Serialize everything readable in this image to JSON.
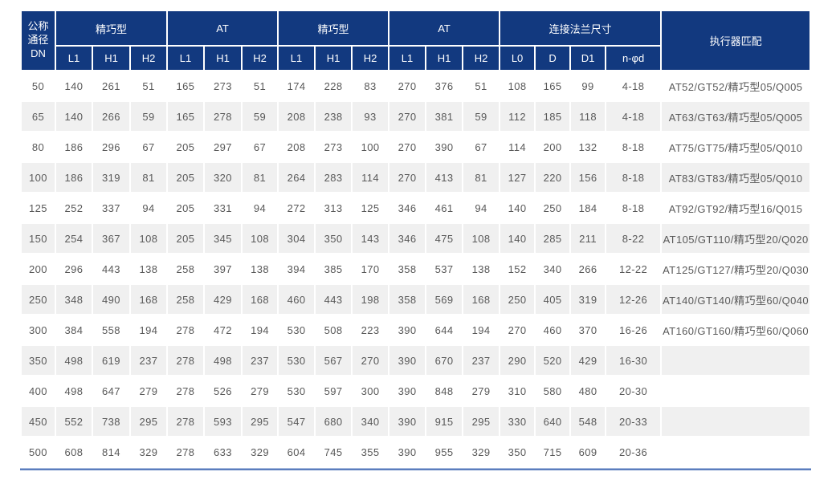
{
  "colors": {
    "header_bg": "#12397f",
    "alt_row_bg": "#f0f0f0",
    "data_text": "#595959",
    "header_text": "#ffffff",
    "bottom_rule": "#5b7dbe"
  },
  "table": {
    "header": {
      "dn_label": "公称\n通径\nDN",
      "groups": [
        {
          "label": "精巧型"
        },
        {
          "label": "AT"
        },
        {
          "label": "精巧型"
        },
        {
          "label": "AT"
        },
        {
          "label": "连接法兰尺寸"
        }
      ],
      "sub": [
        "L1",
        "H1",
        "H2",
        "L1",
        "H1",
        "H2",
        "L1",
        "H1",
        "H2",
        "L1",
        "H1",
        "H2",
        "L0",
        "D",
        "D1",
        "n-φd"
      ],
      "actuator_label": "执行器匹配"
    },
    "rows": [
      {
        "dn": "50",
        "values": [
          "140",
          "261",
          "51",
          "165",
          "273",
          "51",
          "174",
          "228",
          "83",
          "270",
          "376",
          "51",
          "108",
          "165",
          "99",
          "4-18"
        ],
        "actuator": "AT52/GT52/精巧型05/Q005"
      },
      {
        "dn": "65",
        "values": [
          "140",
          "266",
          "59",
          "165",
          "278",
          "59",
          "208",
          "238",
          "93",
          "270",
          "381",
          "59",
          "112",
          "185",
          "118",
          "4-18"
        ],
        "actuator": "AT63/GT63/精巧型05/Q005"
      },
      {
        "dn": "80",
        "values": [
          "186",
          "296",
          "67",
          "205",
          "297",
          "67",
          "208",
          "273",
          "100",
          "270",
          "390",
          "67",
          "114",
          "200",
          "132",
          "8-18"
        ],
        "actuator": "AT75/GT75/精巧型05/Q010"
      },
      {
        "dn": "100",
        "values": [
          "186",
          "319",
          "81",
          "205",
          "320",
          "81",
          "264",
          "283",
          "114",
          "270",
          "413",
          "81",
          "127",
          "220",
          "156",
          "8-18"
        ],
        "actuator": "AT83/GT83/精巧型05/Q010"
      },
      {
        "dn": "125",
        "values": [
          "252",
          "337",
          "94",
          "205",
          "331",
          "94",
          "272",
          "313",
          "125",
          "346",
          "461",
          "94",
          "140",
          "250",
          "184",
          "8-18"
        ],
        "actuator": "AT92/GT92/精巧型16/Q015"
      },
      {
        "dn": "150",
        "values": [
          "254",
          "367",
          "108",
          "205",
          "345",
          "108",
          "304",
          "350",
          "143",
          "346",
          "475",
          "108",
          "140",
          "285",
          "211",
          "8-22"
        ],
        "actuator": "AT105/GT110/精巧型20/Q020"
      },
      {
        "dn": "200",
        "values": [
          "296",
          "443",
          "138",
          "258",
          "397",
          "138",
          "394",
          "385",
          "170",
          "358",
          "537",
          "138",
          "152",
          "340",
          "266",
          "12-22"
        ],
        "actuator": "AT125/GT127/精巧型20/Q030"
      },
      {
        "dn": "250",
        "values": [
          "348",
          "490",
          "168",
          "258",
          "429",
          "168",
          "460",
          "443",
          "198",
          "358",
          "569",
          "168",
          "250",
          "405",
          "319",
          "12-26"
        ],
        "actuator": "AT140/GT140/精巧型60/Q040"
      },
      {
        "dn": "300",
        "values": [
          "384",
          "558",
          "194",
          "278",
          "472",
          "194",
          "530",
          "508",
          "223",
          "390",
          "644",
          "194",
          "270",
          "460",
          "370",
          "16-26"
        ],
        "actuator": "AT160/GT160/精巧型60/Q060"
      },
      {
        "dn": "350",
        "values": [
          "498",
          "619",
          "237",
          "278",
          "498",
          "237",
          "530",
          "567",
          "270",
          "390",
          "670",
          "237",
          "290",
          "520",
          "429",
          "16-30"
        ],
        "actuator": ""
      },
      {
        "dn": "400",
        "values": [
          "498",
          "647",
          "279",
          "278",
          "526",
          "279",
          "530",
          "597",
          "300",
          "390",
          "848",
          "279",
          "310",
          "580",
          "480",
          "20-30"
        ],
        "actuator": ""
      },
      {
        "dn": "450",
        "values": [
          "552",
          "738",
          "295",
          "278",
          "593",
          "295",
          "547",
          "680",
          "340",
          "390",
          "915",
          "295",
          "330",
          "640",
          "548",
          "20-33"
        ],
        "actuator": ""
      },
      {
        "dn": "500",
        "values": [
          "608",
          "814",
          "329",
          "278",
          "633",
          "329",
          "604",
          "745",
          "355",
          "390",
          "955",
          "329",
          "350",
          "715",
          "609",
          "20-36"
        ],
        "actuator": ""
      }
    ]
  }
}
